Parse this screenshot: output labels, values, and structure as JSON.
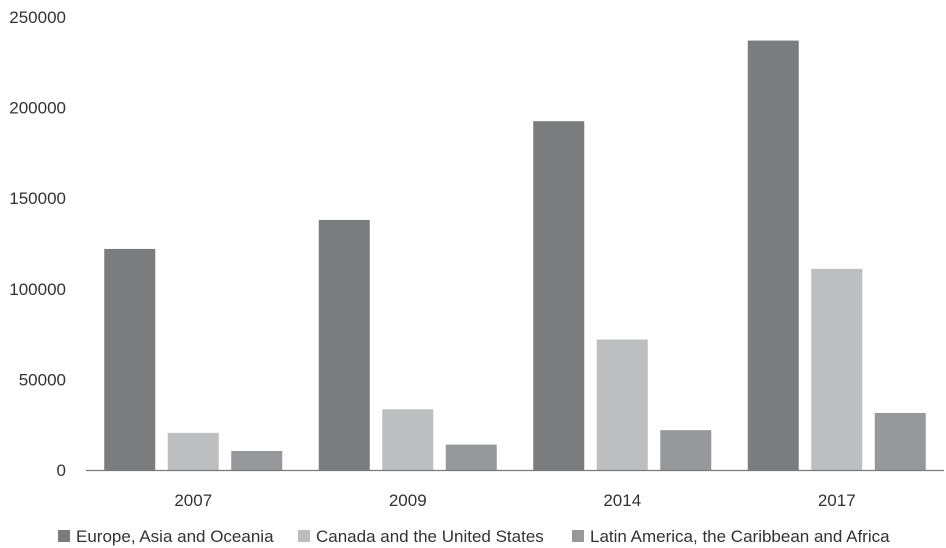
{
  "chart_data": {
    "type": "bar",
    "categories": [
      "2007",
      "2009",
      "2014",
      "2017"
    ],
    "series": [
      {
        "name": "Europe, Asia and Oceania",
        "color": "#7b7c7e",
        "values": [
          122000,
          138000,
          192500,
          237000
        ]
      },
      {
        "name": "Canada and the United States",
        "color": "#bdbec0",
        "values": [
          20500,
          33500,
          72000,
          111000
        ]
      },
      {
        "name": "Latin America, the Caribbean and Africa",
        "color": "#97989b",
        "values": [
          10500,
          14000,
          22000,
          31500
        ]
      }
    ],
    "yticks": [
      "0",
      "50000",
      "100000",
      "150000",
      "200000",
      "250000"
    ],
    "ylim": [
      0,
      250000
    ],
    "grid": false,
    "legend_position": "bottom"
  }
}
